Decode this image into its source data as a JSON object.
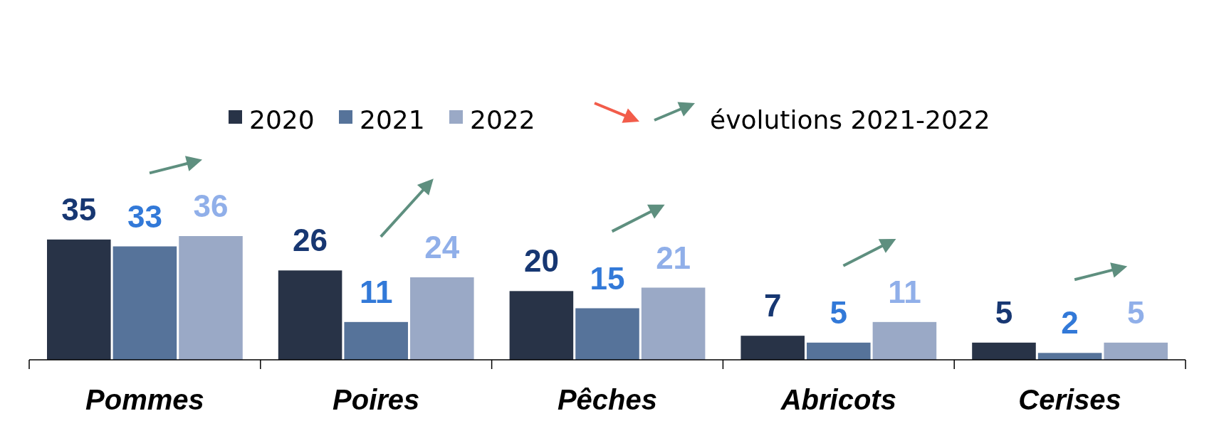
{
  "chart_data": {
    "type": "bar",
    "categories": [
      "Pommes",
      "Poires",
      "Pêches",
      "Abricots",
      "Cerises"
    ],
    "series": [
      {
        "name": "2020",
        "color": "#283347",
        "values": [
          35,
          26,
          20,
          7,
          5
        ]
      },
      {
        "name": "2021",
        "color": "#56739a",
        "values": [
          33,
          11,
          15,
          5,
          2
        ]
      },
      {
        "name": "2022",
        "color": "#9aa9c6",
        "values": [
          36,
          24,
          21,
          11,
          5
        ]
      }
    ],
    "data_labels": true,
    "legend": "top",
    "annotations": [
      "évolutions 2021-2022"
    ]
  }
}
